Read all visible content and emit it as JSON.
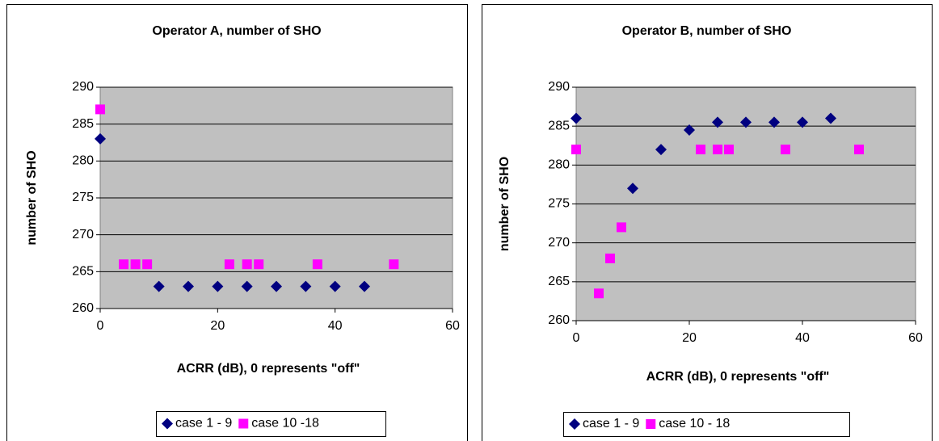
{
  "chart_data": [
    {
      "type": "scatter",
      "title": "Operator A, number of SHO",
      "xlabel": "ACRR (dB), 0 represents \"off\"",
      "ylabel": "number of SHO",
      "xlim": [
        0,
        60
      ],
      "xticks": [
        0,
        20,
        40,
        60
      ],
      "ylim": [
        260,
        290
      ],
      "yticks": [
        260,
        265,
        270,
        275,
        280,
        285,
        290
      ],
      "grid": true,
      "series": [
        {
          "name": "case 1 - 9",
          "color": "#000080",
          "marker": "diamond",
          "x": [
            0,
            10,
            15,
            20,
            25,
            30,
            35,
            40,
            45
          ],
          "values": [
            283,
            263,
            263,
            263,
            263,
            263,
            263,
            263,
            263
          ]
        },
        {
          "name": "case 10 -18",
          "color": "#ff00ff",
          "marker": "square",
          "x": [
            0,
            4,
            6,
            8,
            22,
            25,
            27,
            37,
            50
          ],
          "values": [
            287,
            266,
            266,
            266,
            266,
            266,
            266,
            266,
            266
          ]
        }
      ]
    },
    {
      "type": "scatter",
      "title": "Operator B, number of SHO",
      "xlabel": "ACRR (dB), 0 represents \"off\"",
      "ylabel": "number of SHO",
      "xlim": [
        0,
        60
      ],
      "xticks": [
        0,
        20,
        40,
        60
      ],
      "ylim": [
        260,
        290
      ],
      "yticks": [
        260,
        265,
        270,
        275,
        280,
        285,
        290
      ],
      "grid": true,
      "series": [
        {
          "name": "case 1 - 9",
          "color": "#000080",
          "marker": "diamond",
          "x": [
            0,
            10,
            15,
            20,
            25,
            30,
            35,
            40,
            45
          ],
          "values": [
            286,
            277,
            282,
            284.5,
            285.5,
            285.5,
            285.5,
            285.5,
            286
          ]
        },
        {
          "name": "case 10 - 18",
          "color": "#ff00ff",
          "marker": "square",
          "x": [
            0,
            4,
            6,
            8,
            22,
            25,
            27,
            37,
            50
          ],
          "values": [
            282,
            263.5,
            268,
            272,
            282,
            282,
            282,
            282,
            282
          ]
        }
      ]
    }
  ]
}
